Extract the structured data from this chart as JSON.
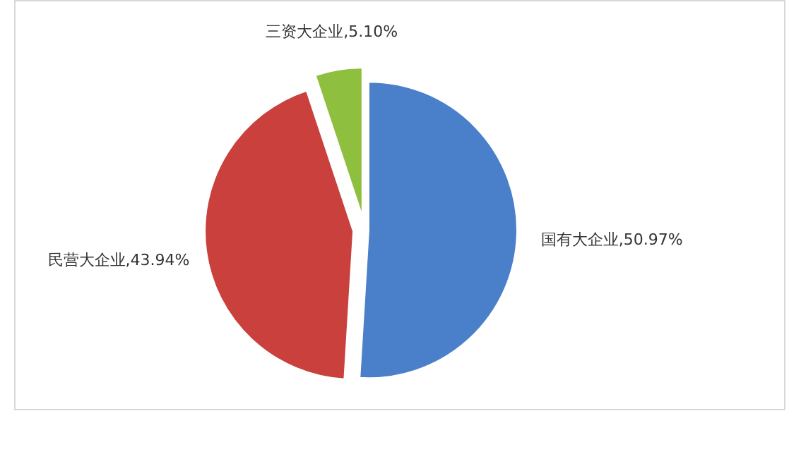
{
  "chart_data": {
    "type": "pie",
    "categories": [
      "国有大企业",
      "民营大企业",
      "三资大企业"
    ],
    "values": [
      50.97,
      43.94,
      5.1
    ],
    "colors": [
      "#4a7fc9",
      "#c9403c",
      "#8fbf3f"
    ],
    "value_labels": [
      "50.97%",
      "43.94%",
      "5.10%"
    ]
  }
}
